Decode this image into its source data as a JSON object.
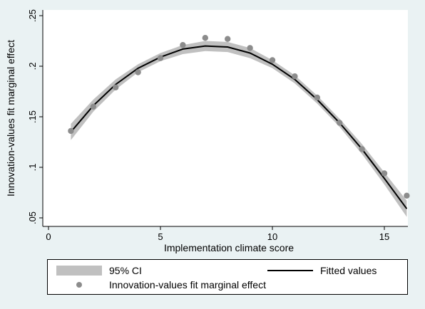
{
  "chart_data": {
    "type": "scatter",
    "xlabel": "Implementation climate score",
    "ylabel": "Innovation-values fit marginal effect",
    "xlim": [
      0,
      16.5
    ],
    "ylim": [
      0.045,
      0.25
    ],
    "xticks": [
      0,
      5,
      10,
      15
    ],
    "xtick_labels": [
      "0",
      "5",
      "10",
      "15"
    ],
    "yticks": [
      0.05,
      0.1,
      0.15,
      0.2,
      0.25
    ],
    "ytick_labels": [
      ".05",
      ".1",
      ".15",
      ".2",
      ".25"
    ],
    "grid": false,
    "legend_position": "bottom",
    "series": [
      {
        "name": "95% CI",
        "kind": "band",
        "x": [
          1,
          2,
          3,
          4,
          5,
          6,
          7,
          8,
          9,
          10,
          11,
          12,
          13,
          14,
          15,
          16
        ],
        "lower": [
          0.127,
          0.155,
          0.177,
          0.194,
          0.205,
          0.212,
          0.215,
          0.214,
          0.208,
          0.198,
          0.183,
          0.163,
          0.14,
          0.113,
          0.083,
          0.051
        ],
        "upper": [
          0.143,
          0.167,
          0.187,
          0.202,
          0.213,
          0.221,
          0.225,
          0.224,
          0.218,
          0.206,
          0.191,
          0.171,
          0.148,
          0.123,
          0.095,
          0.067
        ]
      },
      {
        "name": "Fitted values",
        "kind": "line",
        "x": [
          1,
          2,
          3,
          4,
          5,
          6,
          7,
          8,
          9,
          10,
          11,
          12,
          13,
          14,
          15,
          16
        ],
        "y": [
          0.135,
          0.161,
          0.182,
          0.198,
          0.209,
          0.217,
          0.22,
          0.219,
          0.213,
          0.202,
          0.187,
          0.167,
          0.144,
          0.118,
          0.089,
          0.059
        ]
      },
      {
        "name": "Innovation-values fit marginal effect",
        "kind": "points",
        "x": [
          1,
          2,
          3,
          4,
          5,
          6,
          7,
          8,
          9,
          10,
          11,
          12,
          13,
          14,
          15,
          16
        ],
        "y": [
          0.136,
          0.16,
          0.179,
          0.194,
          0.208,
          0.221,
          0.228,
          0.227,
          0.218,
          0.206,
          0.19,
          0.169,
          0.144,
          0.118,
          0.094,
          0.072
        ]
      }
    ],
    "colors": {
      "background": "#eaf2f3",
      "plot_background": "#ffffff",
      "band": "#c0c0c0",
      "line": "#000000",
      "points": "#8c8c8c"
    }
  },
  "legend": {
    "items": [
      "95% CI",
      "Fitted values",
      "Innovation-values fit marginal effect"
    ]
  }
}
